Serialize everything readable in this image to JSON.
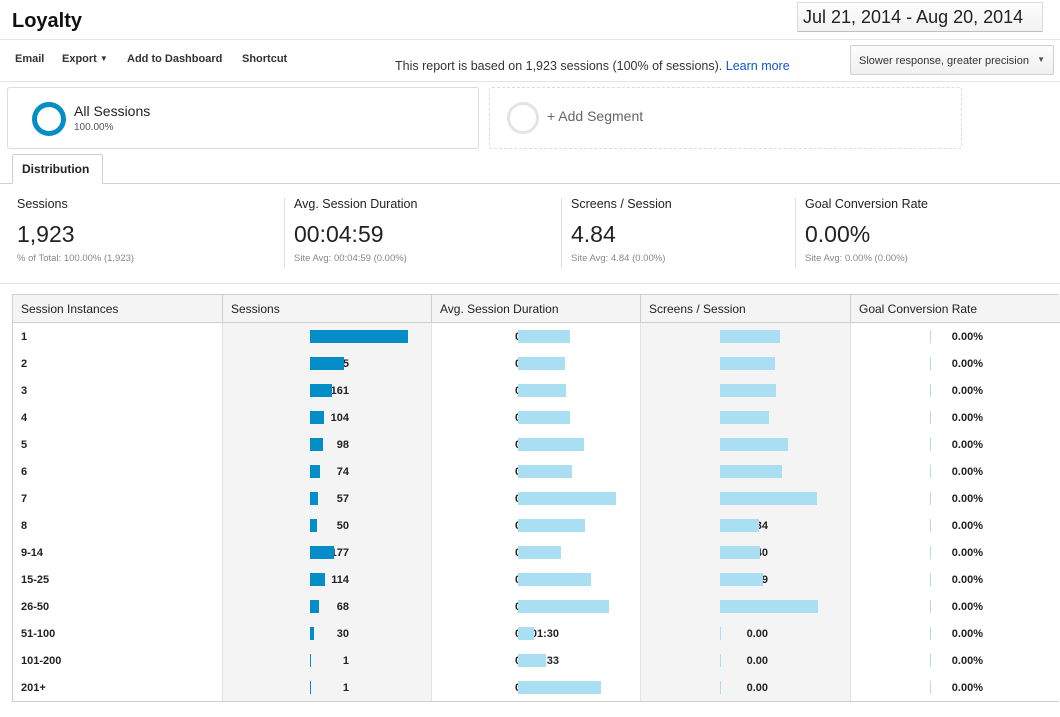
{
  "header": {
    "title": "Loyalty",
    "date_range": "Jul 21, 2014 - Aug 20, 2014"
  },
  "toolbar": {
    "email": "Email",
    "export": "Export",
    "add_to_dashboard": "Add to Dashboard",
    "shortcut": "Shortcut",
    "report_note": "This report is based on 1,923 sessions (100% of sessions).",
    "learn_more": "Learn more",
    "sampling": "Slower response, greater precision"
  },
  "segment": {
    "name": "All Sessions",
    "pct": "100.00%",
    "add_label": "+ Add Segment"
  },
  "tab": {
    "label": "Distribution"
  },
  "scorecards": [
    {
      "label": "Sessions",
      "value": "1,923",
      "sub": "% of Total: 100.00% (1,923)"
    },
    {
      "label": "Avg. Session Duration",
      "value": "00:04:59",
      "sub": "Site Avg: 00:04:59 (0.00%)"
    },
    {
      "label": "Screens / Session",
      "value": "4.84",
      "sub": "Site Avg: 4.84 (0.00%)"
    },
    {
      "label": "Goal Conversion Rate",
      "value": "0.00%",
      "sub": "Site Avg: 0.00% (0.00%)"
    }
  ],
  "table": {
    "columns": [
      "Session Instances",
      "Sessions",
      "Avg. Session Duration",
      "Screens / Session",
      "Goal Conversion Rate"
    ],
    "rows": [
      {
        "label": "1",
        "sessions": "733",
        "duration": "00:04:42",
        "screens": "5.07",
        "goal": "0.00%",
        "sessions_n": 733,
        "duration_s": 282,
        "screens_n": 5.07,
        "goal_n": 0
      },
      {
        "label": "2",
        "sessions": "255",
        "duration": "00:04:18",
        "screens": "4.66",
        "goal": "0.00%",
        "sessions_n": 255,
        "duration_s": 258,
        "screens_n": 4.66,
        "goal_n": 0
      },
      {
        "label": "3",
        "sessions": "161",
        "duration": "00:04:20",
        "screens": "4.81",
        "goal": "0.00%",
        "sessions_n": 161,
        "duration_s": 260,
        "screens_n": 4.81,
        "goal_n": 0
      },
      {
        "label": "4",
        "sessions": "104",
        "duration": "00:04:43",
        "screens": "4.15",
        "goal": "0.00%",
        "sessions_n": 104,
        "duration_s": 283,
        "screens_n": 4.15,
        "goal_n": 0
      },
      {
        "label": "5",
        "sessions": "98",
        "duration": "00:06:01",
        "screens": "5.78",
        "goal": "0.00%",
        "sessions_n": 98,
        "duration_s": 361,
        "screens_n": 5.78,
        "goal_n": 0
      },
      {
        "label": "6",
        "sessions": "74",
        "duration": "00:04:55",
        "screens": "5.27",
        "goal": "0.00%",
        "sessions_n": 74,
        "duration_s": 295,
        "screens_n": 5.27,
        "goal_n": 0
      },
      {
        "label": "7",
        "sessions": "57",
        "duration": "00:08:56",
        "screens": "8.28",
        "goal": "0.00%",
        "sessions_n": 57,
        "duration_s": 536,
        "screens_n": 8.28,
        "goal_n": 0
      },
      {
        "label": "8",
        "sessions": "50",
        "duration": "00:06:09",
        "screens": "3.34",
        "goal": "0.00%",
        "sessions_n": 50,
        "duration_s": 369,
        "screens_n": 3.34,
        "goal_n": 0
      },
      {
        "label": "9-14",
        "sessions": "177",
        "duration": "00:03:57",
        "screens": "3.40",
        "goal": "0.00%",
        "sessions_n": 177,
        "duration_s": 237,
        "screens_n": 3.4,
        "goal_n": 0
      },
      {
        "label": "15-25",
        "sessions": "114",
        "duration": "00:06:38",
        "screens": "3.69",
        "goal": "0.00%",
        "sessions_n": 114,
        "duration_s": 398,
        "screens_n": 3.69,
        "goal_n": 0
      },
      {
        "label": "26-50",
        "sessions": "68",
        "duration": "00:08:20",
        "screens": "8.35",
        "goal": "0.00%",
        "sessions_n": 68,
        "duration_s": 500,
        "screens_n": 8.35,
        "goal_n": 0
      },
      {
        "label": "51-100",
        "sessions": "30",
        "duration": "00:01:30",
        "screens": "0.00",
        "goal": "0.00%",
        "sessions_n": 30,
        "duration_s": 90,
        "screens_n": 0,
        "goal_n": 0
      },
      {
        "label": "101-200",
        "sessions": "1",
        "duration": "00:02:33",
        "screens": "0.00",
        "goal": "0.00%",
        "sessions_n": 1,
        "duration_s": 153,
        "screens_n": 0,
        "goal_n": 0
      },
      {
        "label": "201+",
        "sessions": "1",
        "duration": "00:07:32",
        "screens": "0.00",
        "goal": "0.00%",
        "sessions_n": 1,
        "duration_s": 452,
        "screens_n": 0,
        "goal_n": 0
      }
    ]
  },
  "colors": {
    "accent": "#058dc7",
    "bar_light": "#aadff3",
    "link": "#1155cc"
  }
}
